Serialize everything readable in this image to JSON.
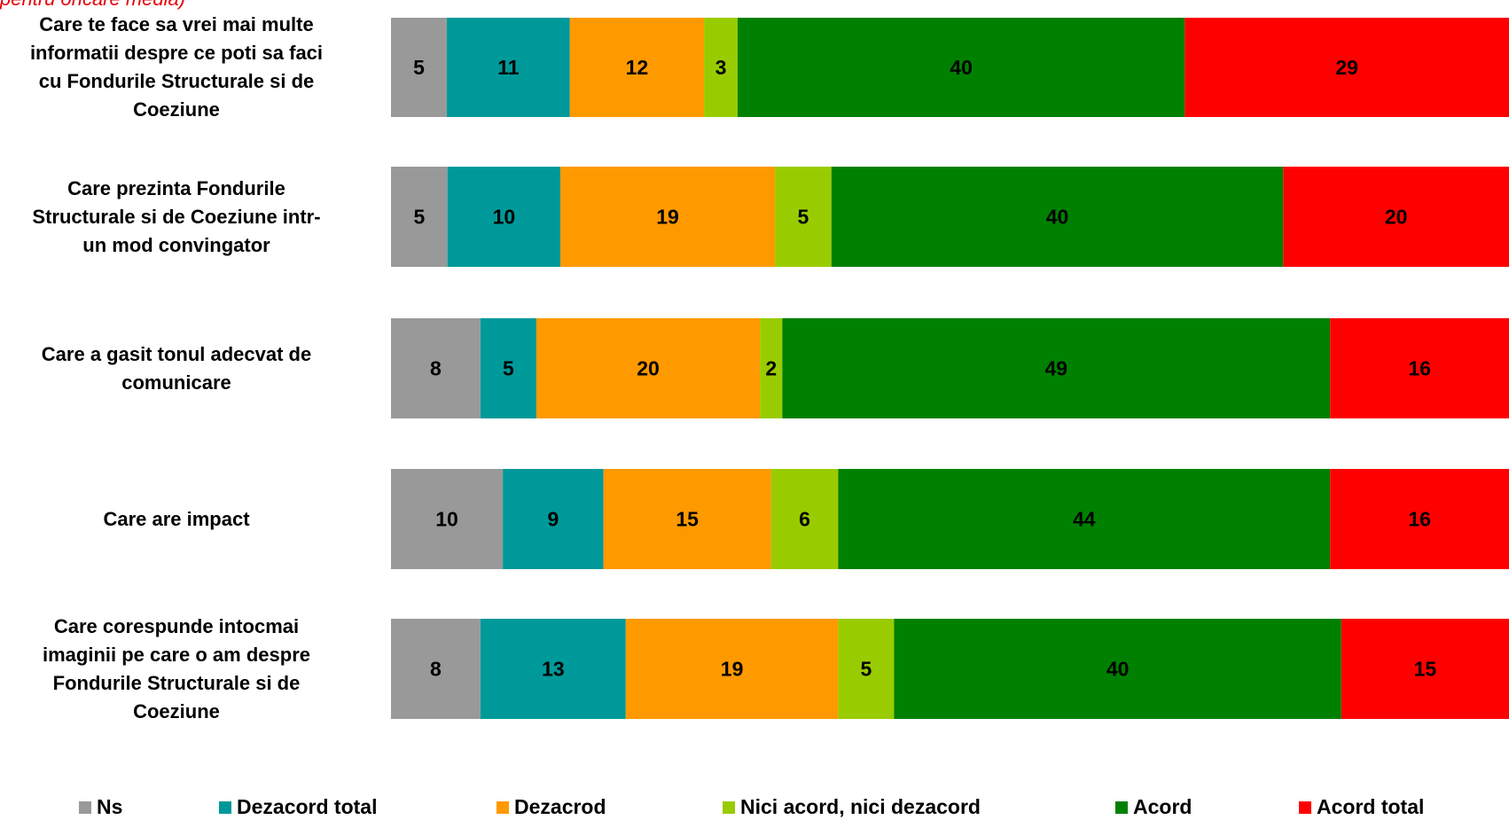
{
  "note": "pentru oricare media)",
  "chart_data": {
    "type": "bar",
    "orientation": "horizontal",
    "stacked": true,
    "categories": [
      "Care te face sa vrei mai multe informatii despre ce poti sa faci cu Fondurile Structurale si de Coeziune",
      "Care prezinta Fondurile Structurale si de Coeziune intr-un mod convingator",
      "Care a gasit tonul adecvat de comunicare",
      "Care are  impact",
      "Care corespunde intocmai imaginii pe care o am despre Fondurile Structurale si de Coeziune"
    ],
    "series": [
      {
        "name": "Ns",
        "color": "#999999",
        "values": [
          5,
          5,
          8,
          10,
          8
        ]
      },
      {
        "name": "Dezacord total",
        "color": "#009999",
        "values": [
          11,
          10,
          5,
          9,
          13
        ]
      },
      {
        "name": "Dezacrod",
        "color": "#ff9900",
        "values": [
          12,
          19,
          20,
          15,
          19
        ]
      },
      {
        "name": "Nici acord, nici dezacord",
        "color": "#99cc00",
        "values": [
          3,
          5,
          2,
          6,
          5
        ]
      },
      {
        "name": "Acord",
        "color": "#008000",
        "values": [
          40,
          40,
          49,
          44,
          40
        ]
      },
      {
        "name": "Acord total",
        "color": "#ff0000",
        "values": [
          29,
          20,
          16,
          16,
          15
        ]
      }
    ],
    "xlim": [
      0,
      100
    ],
    "legend_position": "bottom",
    "grid": false,
    "data_labels": true
  }
}
